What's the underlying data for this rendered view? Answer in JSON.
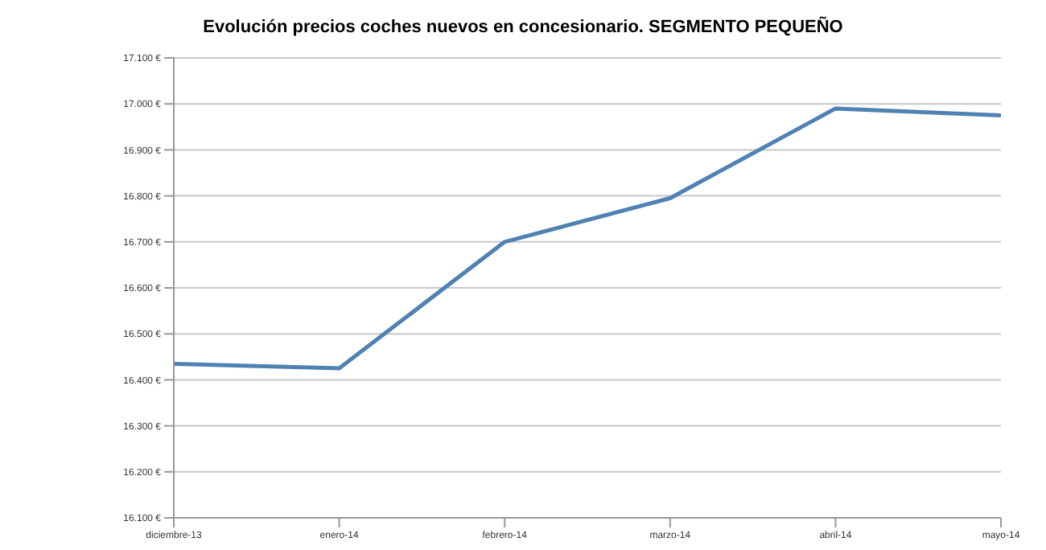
{
  "chart_data": {
    "type": "line",
    "title": "Evolución precios coches nuevos en concesionario. SEGMENTO PEQUEÑO",
    "categories": [
      "diciembre-13",
      "enero-14",
      "febrero-14",
      "marzo-14",
      "abril-14",
      "mayo-14"
    ],
    "series": [
      {
        "color": "#4f81b3",
        "values": [
          16435,
          16425,
          16700,
          16795,
          16990,
          16975
        ]
      }
    ],
    "ylim": [
      16100,
      17100
    ],
    "yticks": [
      {
        "value": 16100,
        "label": "16.100 €"
      },
      {
        "value": 16200,
        "label": "16.200 €"
      },
      {
        "value": 16300,
        "label": "16.300 €"
      },
      {
        "value": 16400,
        "label": "16.400 €"
      },
      {
        "value": 16500,
        "label": "16.500 €"
      },
      {
        "value": 16600,
        "label": "16.600 €"
      },
      {
        "value": 16700,
        "label": "16.700 €"
      },
      {
        "value": 16800,
        "label": "16.800 €"
      },
      {
        "value": 16900,
        "label": "16.900 €"
      },
      {
        "value": 17000,
        "label": "17.000 €"
      },
      {
        "value": 17100,
        "label": "17.100 €"
      }
    ],
    "grid": "y",
    "legend": false,
    "marker": "none",
    "line_style": "solid"
  }
}
